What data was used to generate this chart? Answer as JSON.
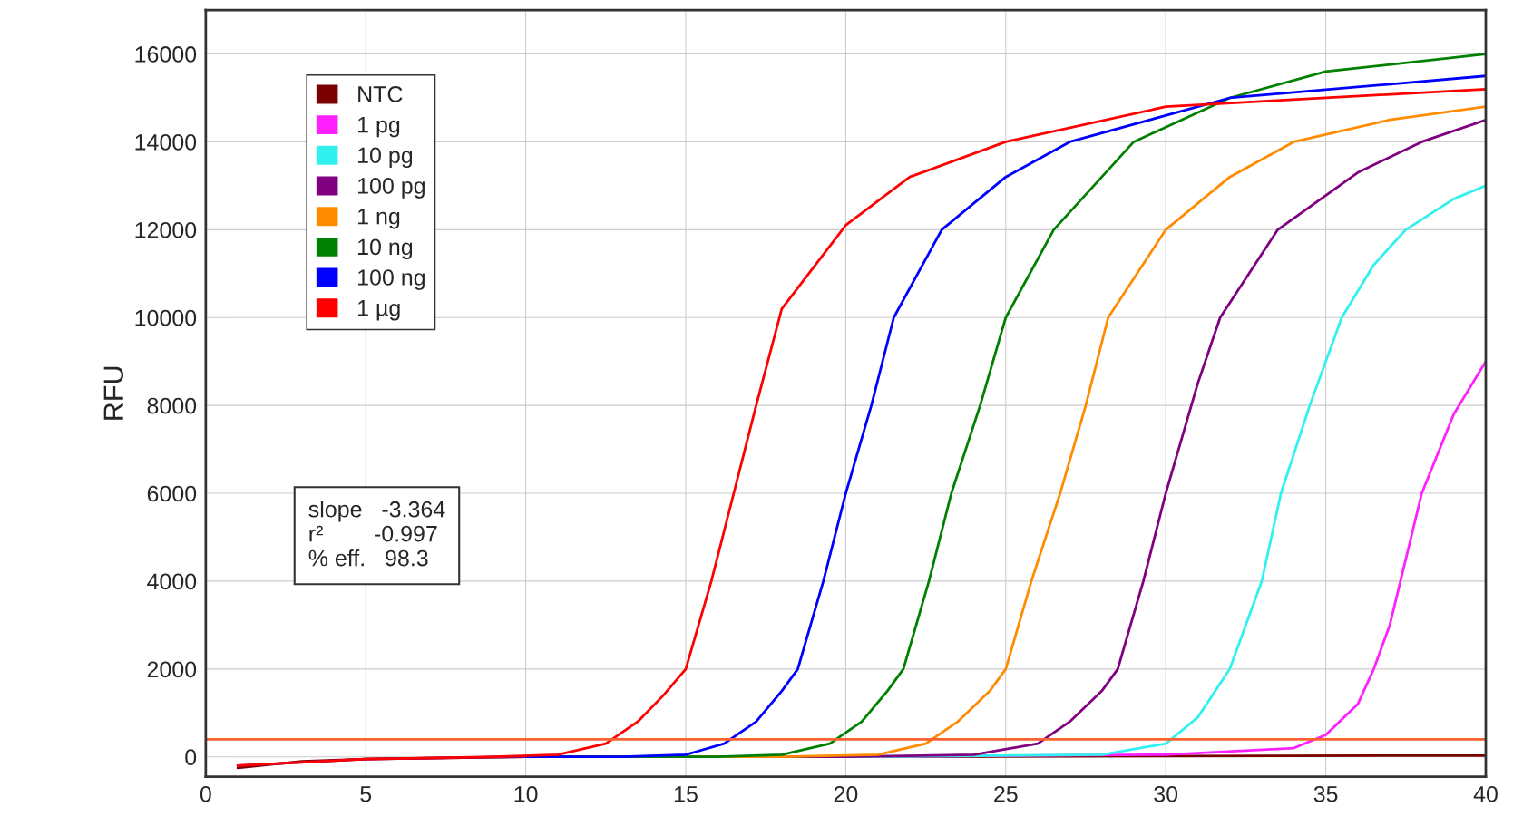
{
  "chart_data": {
    "type": "line",
    "ylabel": "RFU",
    "xlim": [
      0,
      40
    ],
    "ylim": [
      -450,
      17000
    ],
    "xticks": [
      0,
      5,
      10,
      15,
      20,
      25,
      30,
      35,
      40
    ],
    "yticks": [
      0,
      2000,
      4000,
      6000,
      8000,
      10000,
      12000,
      14000,
      16000
    ],
    "grid": true,
    "legend": "top left",
    "marker": "none",
    "line_style": "solid",
    "series": [
      {
        "name": "NTC",
        "color": "#7a0000",
        "x": [
          1,
          3,
          5,
          10,
          20,
          30,
          40
        ],
        "values": [
          -250,
          -100,
          -50,
          0,
          0,
          20,
          30
        ]
      },
      {
        "name": "1 pg",
        "color": "#ff20ff",
        "x": [
          20,
          30,
          34,
          35,
          36,
          36.5,
          37,
          38,
          39,
          40
        ],
        "values": [
          0,
          50,
          200,
          500,
          1200,
          2000,
          3000,
          6000,
          7800,
          9000
        ]
      },
      {
        "name": "10 pg",
        "color": "#30f0f0",
        "x": [
          10,
          20,
          28,
          30,
          31,
          32,
          33,
          33.6,
          34.5,
          35.5,
          36.5,
          37.5,
          39,
          40
        ],
        "values": [
          0,
          0,
          50,
          300,
          900,
          2000,
          4000,
          6000,
          8000,
          10000,
          11200,
          12000,
          12700,
          13000
        ]
      },
      {
        "name": "100 pg",
        "color": "#800080",
        "x": [
          1,
          5,
          10,
          20,
          24,
          26,
          27,
          28,
          28.5,
          29.3,
          30,
          31,
          31.7,
          33.5,
          36,
          38,
          40
        ],
        "values": [
          -200,
          -50,
          0,
          0,
          50,
          300,
          800,
          1500,
          2000,
          4000,
          6000,
          8500,
          10000,
          12000,
          13300,
          14000,
          14500
        ]
      },
      {
        "name": "1 ng",
        "color": "#ff8c00",
        "x": [
          10,
          18,
          21,
          22.5,
          23.5,
          24.5,
          25,
          25.8,
          26.7,
          27.5,
          28.2,
          30,
          32,
          34,
          37,
          40
        ],
        "values": [
          0,
          0,
          50,
          300,
          800,
          1500,
          2000,
          4000,
          6000,
          8000,
          10000,
          12000,
          13200,
          14000,
          14500,
          14800
        ]
      },
      {
        "name": "10 ng",
        "color": "#008000",
        "x": [
          10,
          16,
          18,
          19.5,
          20.5,
          21.3,
          21.8,
          22.6,
          23.3,
          24.2,
          25,
          26.5,
          29,
          32,
          35,
          40
        ],
        "values": [
          0,
          0,
          50,
          300,
          800,
          1500,
          2000,
          4000,
          6000,
          8000,
          10000,
          12000,
          14000,
          15000,
          15600,
          16000
        ]
      },
      {
        "name": "100 ng",
        "color": "#0000ff",
        "x": [
          10,
          13,
          15,
          16.2,
          17.2,
          18,
          18.5,
          19.3,
          20,
          20.8,
          21.5,
          23,
          25,
          27,
          32,
          40
        ],
        "values": [
          0,
          0,
          50,
          300,
          800,
          1500,
          2000,
          4000,
          6000,
          8000,
          10000,
          12000,
          13200,
          14000,
          15000,
          15500
        ]
      },
      {
        "name": "1 µg",
        "color": "#ff0000",
        "x": [
          1,
          5,
          9,
          11,
          12.5,
          13.5,
          14.3,
          15,
          15.8,
          16.5,
          17.2,
          18,
          20,
          22,
          25,
          30,
          35,
          40
        ],
        "values": [
          -200,
          -50,
          0,
          50,
          300,
          800,
          1400,
          2000,
          4000,
          6000,
          8000,
          10200,
          12100,
          13200,
          14000,
          14800,
          15000,
          15200
        ]
      }
    ],
    "ref_lines": [
      {
        "axis": "y",
        "value": 400,
        "color": "#ff6030"
      }
    ],
    "annotations": [
      "slope   -3.364",
      "r²        -0.997",
      "% eff.   98.3"
    ]
  }
}
